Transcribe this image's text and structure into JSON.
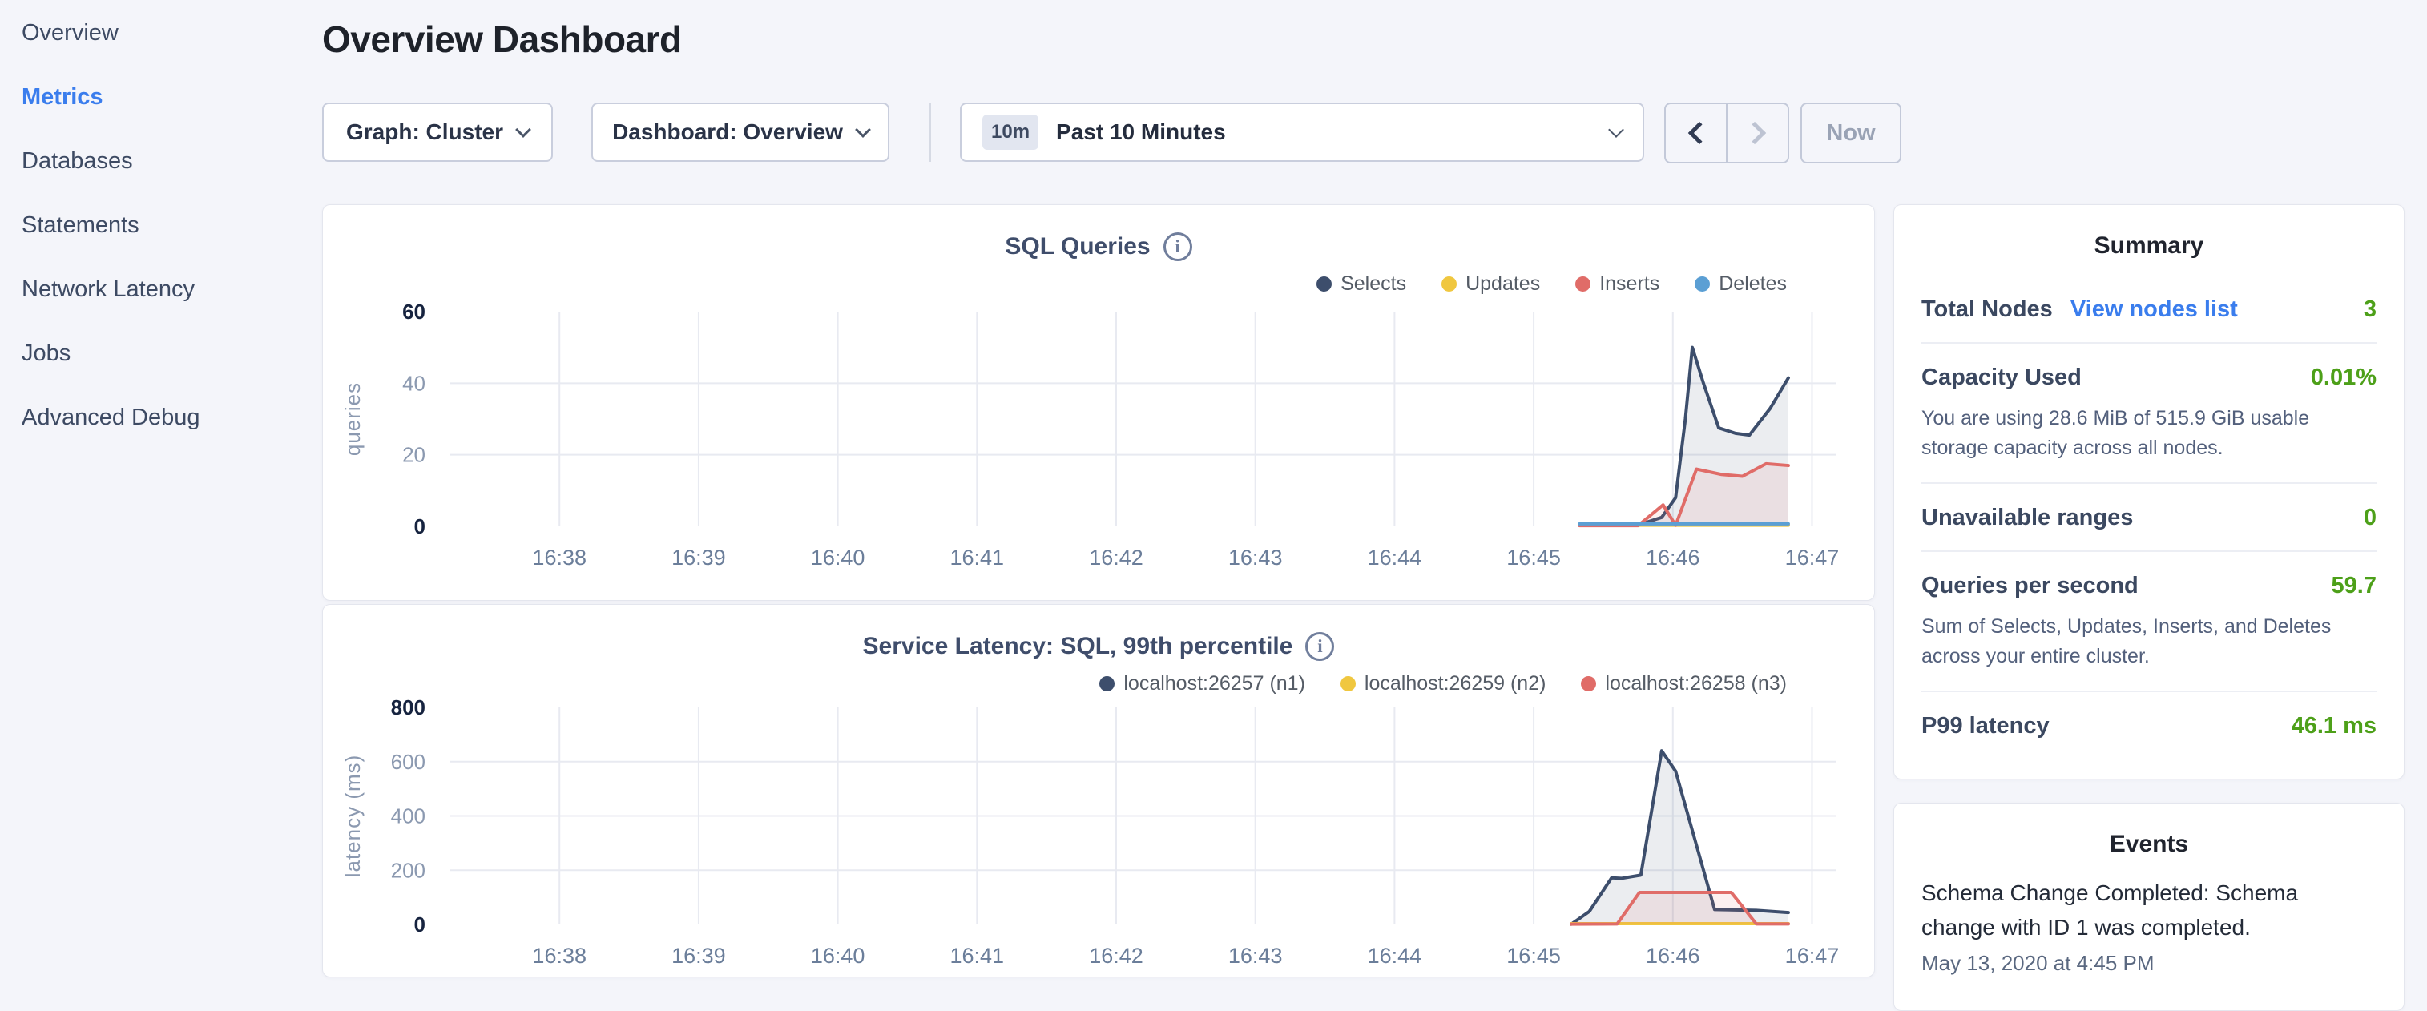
{
  "sidebar": {
    "items": [
      {
        "label": "Overview",
        "active": false
      },
      {
        "label": "Metrics",
        "active": true
      },
      {
        "label": "Databases",
        "active": false
      },
      {
        "label": "Statements",
        "active": false
      },
      {
        "label": "Network Latency",
        "active": false
      },
      {
        "label": "Jobs",
        "active": false
      },
      {
        "label": "Advanced Debug",
        "active": false
      }
    ]
  },
  "header": {
    "title": "Overview Dashboard"
  },
  "toolbar": {
    "graph_dropdown": "Graph: Cluster",
    "dashboard_dropdown": "Dashboard: Overview",
    "time_badge": "10m",
    "time_label": "Past 10 Minutes",
    "now_label": "Now"
  },
  "summary": {
    "title": "Summary",
    "total_nodes": {
      "label": "Total Nodes",
      "link": "View nodes list",
      "value": "3"
    },
    "capacity": {
      "label": "Capacity Used",
      "value": "0.01%",
      "desc": "You are using 28.6 MiB of 515.9 GiB usable storage capacity across all nodes."
    },
    "unavailable": {
      "label": "Unavailable ranges",
      "value": "0"
    },
    "qps": {
      "label": "Queries per second",
      "value": "59.7",
      "desc": "Sum of Selects, Updates, Inserts, and Deletes across your entire cluster."
    },
    "p99": {
      "label": "P99 latency",
      "value": "46.1 ms"
    }
  },
  "events": {
    "title": "Events",
    "items": [
      {
        "text": "Schema Change Completed: Schema change with ID 1 was completed.",
        "timestamp": "May 13, 2020 at 4:45 PM"
      }
    ]
  },
  "colors": {
    "accent_blue": "#3a7ded",
    "value_green": "#4da019",
    "selects_navy": "#3d4e6c",
    "updates_yellow": "#f0c73f",
    "inserts_red": "#e06c68",
    "deletes_blue": "#5b9fd4"
  },
  "chart_data": [
    {
      "type": "line",
      "title": "SQL Queries",
      "ylabel": "queries",
      "ylim": [
        0,
        60
      ],
      "yticks": [
        0,
        20,
        40,
        60
      ],
      "x_domain": [
        37.21,
        47.17
      ],
      "xticks": [
        {
          "t": 38,
          "label": "16:38"
        },
        {
          "t": 39,
          "label": "16:39"
        },
        {
          "t": 40,
          "label": "16:40"
        },
        {
          "t": 41,
          "label": "16:41"
        },
        {
          "t": 42,
          "label": "16:42"
        },
        {
          "t": 43,
          "label": "16:43"
        },
        {
          "t": 44,
          "label": "16:44"
        },
        {
          "t": 45,
          "label": "16:45"
        },
        {
          "t": 46,
          "label": "16:46"
        },
        {
          "t": 47,
          "label": "16:47"
        }
      ],
      "series": [
        {
          "name": "Selects",
          "color": "#3d4e6c",
          "fill": "rgba(61,78,108,0.10)",
          "points": [
            [
              45.33,
              0.4
            ],
            [
              45.62,
              0.4
            ],
            [
              45.8,
              1
            ],
            [
              45.92,
              2.5
            ],
            [
              46.02,
              8
            ],
            [
              46.09,
              30
            ],
            [
              46.14,
              50
            ],
            [
              46.22,
              40
            ],
            [
              46.33,
              27.5
            ],
            [
              46.45,
              26
            ],
            [
              46.55,
              25.5
            ],
            [
              46.7,
              33
            ],
            [
              46.83,
              41.5
            ]
          ]
        },
        {
          "name": "Updates",
          "color": "#f0c73f",
          "fill": "none",
          "points": [
            [
              45.33,
              0.3
            ],
            [
              46.83,
              0.3
            ]
          ]
        },
        {
          "name": "Inserts",
          "color": "#e06c68",
          "fill": "rgba(224,108,104,0.10)",
          "points": [
            [
              45.33,
              0.2
            ],
            [
              45.75,
              0.2
            ],
            [
              45.93,
              6
            ],
            [
              46.02,
              0.3
            ],
            [
              46.17,
              16
            ],
            [
              46.35,
              14.5
            ],
            [
              46.5,
              14
            ],
            [
              46.67,
              17.5
            ],
            [
              46.83,
              17
            ]
          ]
        },
        {
          "name": "Deletes",
          "color": "#5b9fd4",
          "fill": "none",
          "points": [
            [
              45.33,
              0.7
            ],
            [
              46.83,
              0.7
            ]
          ]
        }
      ]
    },
    {
      "type": "line",
      "title": "Service Latency: SQL, 99th percentile",
      "ylabel": "latency (ms)",
      "ylim": [
        0,
        800
      ],
      "yticks": [
        0,
        200,
        400,
        600,
        800
      ],
      "x_domain": [
        37.21,
        47.17
      ],
      "xticks": [
        {
          "t": 38,
          "label": "16:38"
        },
        {
          "t": 39,
          "label": "16:39"
        },
        {
          "t": 40,
          "label": "16:40"
        },
        {
          "t": 41,
          "label": "16:41"
        },
        {
          "t": 42,
          "label": "16:42"
        },
        {
          "t": 43,
          "label": "16:43"
        },
        {
          "t": 44,
          "label": "16:44"
        },
        {
          "t": 45,
          "label": "16:45"
        },
        {
          "t": 46,
          "label": "16:46"
        },
        {
          "t": 47,
          "label": "16:47"
        }
      ],
      "series": [
        {
          "name": "localhost:26257 (n1)",
          "color": "#3d4e6c",
          "fill": "rgba(61,78,108,0.10)",
          "points": [
            [
              45.27,
              1
            ],
            [
              45.4,
              48
            ],
            [
              45.56,
              172
            ],
            [
              45.63,
              170
            ],
            [
              45.77,
              182
            ],
            [
              45.92,
              640
            ],
            [
              46.02,
              565
            ],
            [
              46.3,
              55
            ],
            [
              46.6,
              52
            ],
            [
              46.83,
              44
            ]
          ]
        },
        {
          "name": "localhost:26259 (n2)",
          "color": "#f0c73f",
          "fill": "none",
          "points": [
            [
              45.27,
              3
            ],
            [
              46.83,
              3
            ]
          ]
        },
        {
          "name": "localhost:26258 (n3)",
          "color": "#e06c68",
          "fill": "rgba(224,108,104,0.10)",
          "points": [
            [
              45.27,
              1
            ],
            [
              45.6,
              2
            ],
            [
              45.76,
              118
            ],
            [
              46.42,
              118
            ],
            [
              46.6,
              2
            ],
            [
              46.83,
              2
            ]
          ]
        }
      ]
    }
  ]
}
